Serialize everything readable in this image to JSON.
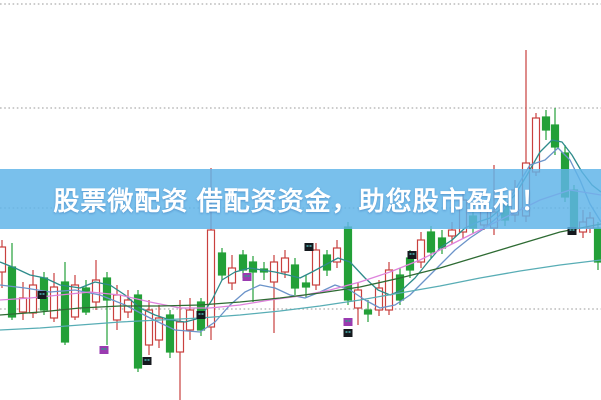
{
  "banner": {
    "text": "股票微配资 借配资资金，助您股市盈利！",
    "bg_rgba": "rgba(95,180,232,0.84)",
    "base_color": "#5FB4E8",
    "text_color": "#FFFFFF"
  },
  "chart_data": {
    "type": "candlestick",
    "title": "",
    "xlabel": "",
    "ylabel": "",
    "axes_visible": false,
    "note": "cropped K-line chart, no tick labels visible; prices in relative units",
    "xlim": [
      0,
      601
    ],
    "ylim": [
      10,
      110
    ],
    "grid": "horizontal-dotted",
    "gridline_values": [
      109,
      83,
      58,
      32.75
    ],
    "gridline_color": "#ADADAD",
    "up_color": "#C9403E",
    "up_fill": "#FFFFFF",
    "down_color": "#23A038",
    "candles_format": [
      "x",
      "open",
      "high",
      "low",
      "close"
    ],
    "candles": [
      [
        2,
        42.0,
        50.0,
        38.0,
        48.25
      ],
      [
        12,
        43.25,
        49.25,
        30.0,
        30.75
      ],
      [
        23,
        32.0,
        39.5,
        30.0,
        35.5
      ],
      [
        33,
        31.75,
        42.5,
        30.5,
        38.75
      ],
      [
        44,
        40.5,
        42.0,
        31.25,
        32.5
      ],
      [
        54,
        30.5,
        41.75,
        29.5,
        38.25
      ],
      [
        65,
        39.5,
        44.5,
        23.75,
        24.5
      ],
      [
        75,
        30.75,
        41.25,
        30.0,
        38.75
      ],
      [
        86,
        38.0,
        40.0,
        31.25,
        32.0
      ],
      [
        96,
        34.5,
        45.0,
        32.5,
        40.0
      ],
      [
        107,
        40.5,
        42.0,
        23.75,
        35.0
      ],
      [
        117,
        30.0,
        38.75,
        27.5,
        36.25
      ],
      [
        128,
        32.0,
        37.5,
        30.5,
        35.0
      ],
      [
        138,
        36.25,
        37.5,
        17.0,
        18.0
      ],
      [
        149,
        23.75,
        35.0,
        21.25,
        32.5
      ],
      [
        159,
        25.0,
        33.75,
        23.0,
        30.5
      ],
      [
        170,
        31.25,
        32.5,
        20.5,
        22.0
      ],
      [
        180,
        22.0,
        35.0,
        6.25,
        29.5
      ],
      [
        190,
        27.5,
        35.5,
        25.0,
        32.5
      ],
      [
        201,
        34.5,
        35.5,
        26.0,
        27.5
      ],
      [
        211,
        28.25,
        68.0,
        25.0,
        52.5
      ],
      [
        222,
        46.75,
        48.0,
        40.0,
        41.25
      ],
      [
        232,
        39.25,
        46.25,
        37.5,
        43.0
      ],
      [
        243,
        46.25,
        47.5,
        40.5,
        42.5
      ],
      [
        253,
        44.5,
        46.0,
        34.5,
        42.0
      ],
      [
        264,
        42.75,
        44.5,
        40.0,
        42.0
      ],
      [
        274,
        39.5,
        46.25,
        26.75,
        44.5
      ],
      [
        285,
        42.0,
        47.5,
        40.5,
        45.5
      ],
      [
        295,
        43.75,
        45.5,
        36.25,
        38.0
      ],
      [
        306,
        39.25,
        41.25,
        35.75,
        38.25
      ],
      [
        316,
        38.75,
        49.25,
        37.5,
        47.5
      ],
      [
        327,
        46.25,
        47.5,
        41.0,
        42.5
      ],
      [
        337,
        44.5,
        50.0,
        43.0,
        48.0
      ],
      [
        348,
        53.25,
        54.5,
        33.75,
        35.0
      ],
      [
        358,
        33.0,
        39.5,
        28.75,
        37.5
      ],
      [
        368,
        32.5,
        35.0,
        29.5,
        31.5
      ],
      [
        379,
        32.5,
        40.0,
        31.0,
        38.0
      ],
      [
        389,
        32.5,
        44.5,
        31.25,
        42.5
      ],
      [
        400,
        41.25,
        43.0,
        33.75,
        35.0
      ],
      [
        410,
        45.5,
        47.5,
        40.5,
        42.5
      ],
      [
        421,
        44.5,
        52.0,
        43.0,
        50.0
      ],
      [
        431,
        52.0,
        53.5,
        45.5,
        47.0
      ],
      [
        442,
        50.5,
        52.5,
        46.5,
        48.0
      ],
      [
        452,
        51.0,
        54.5,
        49.0,
        52.5
      ],
      [
        463,
        52.0,
        62.0,
        50.5,
        60.0
      ],
      [
        473,
        56.0,
        58.0,
        51.5,
        53.0
      ],
      [
        484,
        53.75,
        60.0,
        52.5,
        57.5
      ],
      [
        494,
        53.0,
        68.75,
        51.25,
        57.0
      ],
      [
        505,
        58.75,
        60.5,
        53.5,
        55.0
      ],
      [
        515,
        56.25,
        65.0,
        54.5,
        62.5
      ],
      [
        526,
        56.0,
        97.5,
        54.5,
        69.25
      ],
      [
        536,
        67.0,
        81.75,
        66.0,
        80.5
      ],
      [
        546,
        80.75,
        82.5,
        75.0,
        77.5
      ],
      [
        555,
        78.75,
        83.0,
        71.25,
        73.25
      ],
      [
        565,
        71.75,
        73.75,
        59.5,
        60.75
      ],
      [
        574,
        62.5,
        63.75,
        51.5,
        53.0
      ],
      [
        583,
        52.0,
        57.5,
        50.5,
        54.5
      ],
      [
        590,
        53.0,
        57.0,
        51.75,
        55.5
      ],
      [
        598,
        53.0,
        54.5,
        42.5,
        44.5
      ]
    ],
    "ma_series": [
      {
        "name": "ma-fast-teal",
        "color": "#2E8B8B",
        "points": [
          [
            0,
            44.5
          ],
          [
            15,
            43
          ],
          [
            30,
            41.25
          ],
          [
            45,
            40.5
          ],
          [
            60,
            38.75
          ],
          [
            80,
            38
          ],
          [
            95,
            39.5
          ],
          [
            110,
            38.75
          ],
          [
            125,
            36.25
          ],
          [
            140,
            33
          ],
          [
            155,
            31.25
          ],
          [
            170,
            30
          ],
          [
            185,
            29.5
          ],
          [
            200,
            30.5
          ],
          [
            212,
            35
          ],
          [
            222,
            40
          ],
          [
            235,
            42
          ],
          [
            250,
            43
          ],
          [
            262,
            42.5
          ],
          [
            275,
            42
          ],
          [
            288,
            41.25
          ],
          [
            300,
            40.5
          ],
          [
            312,
            42
          ],
          [
            325,
            43.75
          ],
          [
            338,
            45.5
          ],
          [
            350,
            44.5
          ],
          [
            365,
            40.5
          ],
          [
            378,
            37.5
          ],
          [
            390,
            36.25
          ],
          [
            402,
            37.5
          ],
          [
            415,
            40.5
          ],
          [
            428,
            44.5
          ],
          [
            440,
            48
          ],
          [
            452,
            50
          ],
          [
            465,
            53
          ],
          [
            478,
            54.5
          ],
          [
            490,
            55.5
          ],
          [
            502,
            58
          ],
          [
            515,
            61.25
          ],
          [
            527,
            66.25
          ],
          [
            540,
            72
          ],
          [
            552,
            75
          ],
          [
            562,
            74.5
          ],
          [
            572,
            71.25
          ],
          [
            582,
            67
          ],
          [
            592,
            63.75
          ],
          [
            601,
            62
          ]
        ]
      },
      {
        "name": "ma-mid-blue",
        "color": "#6B93C9",
        "points": [
          [
            0,
            38.75
          ],
          [
            25,
            38
          ],
          [
            50,
            37
          ],
          [
            75,
            37.5
          ],
          [
            100,
            36.25
          ],
          [
            125,
            33.75
          ],
          [
            150,
            30.5
          ],
          [
            175,
            27.5
          ],
          [
            200,
            27
          ],
          [
            215,
            29.5
          ],
          [
            230,
            33.75
          ],
          [
            245,
            37
          ],
          [
            260,
            38.75
          ],
          [
            275,
            38
          ],
          [
            290,
            36.25
          ],
          [
            305,
            35.5
          ],
          [
            320,
            37
          ],
          [
            335,
            38.75
          ],
          [
            350,
            37.5
          ],
          [
            365,
            35
          ],
          [
            380,
            33
          ],
          [
            395,
            33.75
          ],
          [
            410,
            36.25
          ],
          [
            425,
            40
          ],
          [
            440,
            43.75
          ],
          [
            455,
            47.5
          ],
          [
            470,
            50.5
          ],
          [
            485,
            53
          ],
          [
            500,
            56.25
          ],
          [
            515,
            62.5
          ],
          [
            530,
            68.75
          ],
          [
            545,
            70
          ],
          [
            558,
            73
          ],
          [
            570,
            70
          ],
          [
            580,
            65
          ],
          [
            590,
            59
          ],
          [
            601,
            54.5
          ]
        ]
      },
      {
        "name": "ma-pink",
        "color": "#DE82DC",
        "points": [
          [
            0,
            35
          ],
          [
            30,
            35.5
          ],
          [
            60,
            36.25
          ],
          [
            90,
            37
          ],
          [
            120,
            36.25
          ],
          [
            150,
            34.5
          ],
          [
            180,
            33
          ],
          [
            210,
            33
          ],
          [
            240,
            33.75
          ],
          [
            270,
            35
          ],
          [
            300,
            36
          ],
          [
            330,
            37.5
          ],
          [
            360,
            39.5
          ],
          [
            390,
            42
          ],
          [
            420,
            45
          ],
          [
            450,
            48.75
          ],
          [
            480,
            52.5
          ],
          [
            510,
            56.25
          ],
          [
            540,
            60
          ],
          [
            570,
            62.5
          ],
          [
            601,
            61.25
          ]
        ]
      },
      {
        "name": "ma-slow-green",
        "color": "#2E6B33",
        "points": [
          [
            0,
            31.25
          ],
          [
            40,
            32
          ],
          [
            80,
            33
          ],
          [
            120,
            33.5
          ],
          [
            160,
            33.5
          ],
          [
            200,
            33.75
          ],
          [
            240,
            34.5
          ],
          [
            280,
            35.5
          ],
          [
            320,
            36.75
          ],
          [
            360,
            38.25
          ],
          [
            400,
            40.5
          ],
          [
            440,
            43
          ],
          [
            480,
            46
          ],
          [
            520,
            49
          ],
          [
            560,
            52
          ],
          [
            601,
            54
          ]
        ]
      },
      {
        "name": "ma-slow-teal",
        "color": "#58ADB5",
        "points": [
          [
            0,
            27.5
          ],
          [
            40,
            28
          ],
          [
            80,
            28.75
          ],
          [
            120,
            29.5
          ],
          [
            160,
            30
          ],
          [
            200,
            30.5
          ],
          [
            240,
            31.25
          ],
          [
            280,
            32.25
          ],
          [
            320,
            33.5
          ],
          [
            360,
            35
          ],
          [
            400,
            36.75
          ],
          [
            440,
            38.5
          ],
          [
            480,
            40.5
          ],
          [
            520,
            42.25
          ],
          [
            560,
            43.75
          ],
          [
            601,
            45
          ]
        ]
      }
    ],
    "markers": [
      {
        "x": 42,
        "value": 36.25,
        "color": "#15191E"
      },
      {
        "x": 104,
        "value": 22.5,
        "color": "#9A3BB0"
      },
      {
        "x": 147,
        "value": 19.75,
        "color": "#15191E"
      },
      {
        "x": 201,
        "value": 31.25,
        "color": "#15191E"
      },
      {
        "x": 247,
        "value": 40.75,
        "color": "#9A3BB0"
      },
      {
        "x": 309,
        "value": 48.25,
        "color": "#15191E"
      },
      {
        "x": 348,
        "value": 29.5,
        "color": "#9A3BB0"
      },
      {
        "x": 348,
        "value": 26.75,
        "color": "#15191E"
      },
      {
        "x": 412,
        "value": 46.25,
        "color": "#15191E"
      },
      {
        "x": 572,
        "value": 52.25,
        "color": "#15191E"
      }
    ]
  }
}
